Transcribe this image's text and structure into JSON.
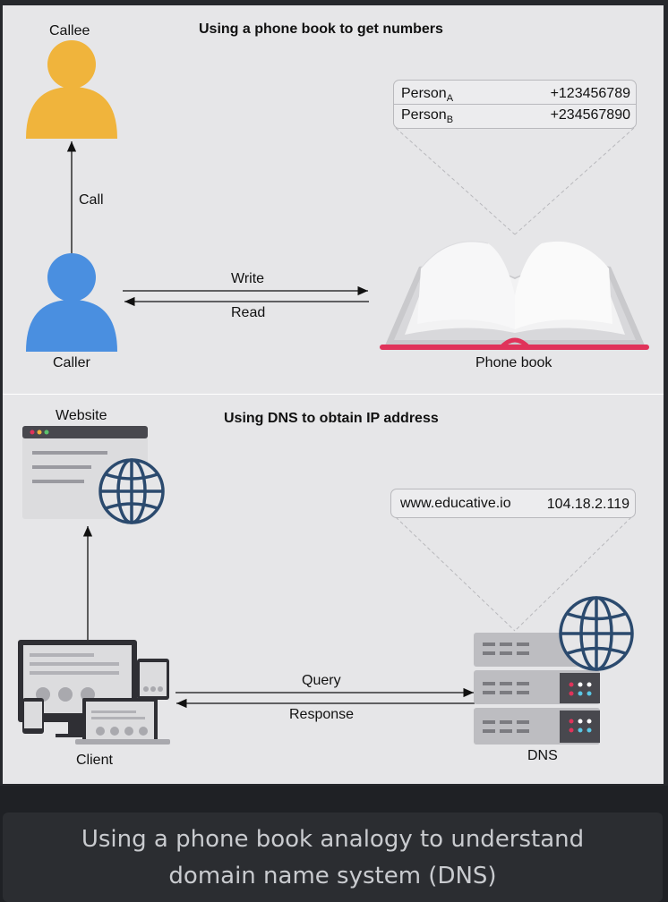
{
  "top_panel": {
    "title": "Using a phone book to get numbers",
    "callee_label": "Callee",
    "caller_label": "Caller",
    "call_label": "Call",
    "write_label": "Write",
    "read_label": "Read",
    "phone_book_label": "Phone book",
    "entries": [
      {
        "name": "Person",
        "sub": "A",
        "number": "+123456789"
      },
      {
        "name": "Person",
        "sub": "B",
        "number": "+234567890"
      }
    ]
  },
  "bottom_panel": {
    "title": "Using DNS to obtain IP address",
    "website_label": "Website",
    "client_label": "Client",
    "dns_label": "DNS",
    "query_label": "Query",
    "response_label": "Response",
    "record": {
      "domain": "www.educative.io",
      "ip": "104.18.2.119"
    }
  },
  "caption": "Using a phone book analogy to understand domain name system (DNS)",
  "colors": {
    "callee": "#f0b43c",
    "caller": "#4a8fe0",
    "book_spine": "#e0335a",
    "globe": "#2b4a6e",
    "background": "#e6e6e8"
  }
}
